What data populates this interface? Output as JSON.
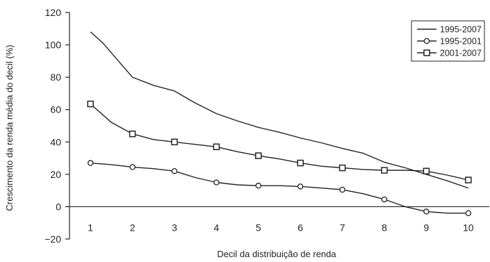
{
  "chart_data": {
    "type": "line",
    "title": "",
    "xlabel": "Decil da distribuição de renda",
    "ylabel": "Crescimento da renda média do decil (%)",
    "xlim": [
      0.5,
      10.5
    ],
    "ylim": [
      -20,
      120
    ],
    "x_ticks": [
      1,
      2,
      3,
      4,
      5,
      6,
      7,
      8,
      9,
      10
    ],
    "x_tick_labels": [
      "1",
      "2",
      "3",
      "4",
      "5",
      "6",
      "7",
      "8",
      "9",
      "10"
    ],
    "y_ticks": [
      -20,
      0,
      20,
      40,
      60,
      80,
      100,
      120
    ],
    "y_tick_labels": [
      "−20",
      "0",
      "20",
      "40",
      "60",
      "80",
      "100",
      "120"
    ],
    "grid": false,
    "legend_position": "top-right",
    "series": [
      {
        "name": "1995-2007",
        "marker": "none",
        "x": [
          1,
          1.3,
          1.6,
          1.8,
          2,
          2.5,
          3,
          3.5,
          4,
          4.5,
          5,
          5.5,
          6,
          6.5,
          7,
          7.5,
          8,
          8.5,
          9,
          9.5,
          10
        ],
        "values": [
          108,
          101,
          92,
          86,
          80,
          75,
          71.5,
          64,
          57.5,
          53,
          49,
          46,
          42.5,
          39.5,
          36,
          33,
          27.5,
          24,
          20,
          16,
          11.5
        ]
      },
      {
        "name": "1995-2001",
        "marker": "circle",
        "x": [
          1,
          1.5,
          2,
          2.5,
          3,
          3.5,
          4,
          4.5,
          5,
          5.5,
          6,
          6.5,
          7,
          7.5,
          8,
          8.5,
          9,
          9.5,
          10
        ],
        "values": [
          27,
          26,
          24.5,
          23.5,
          22,
          18,
          15,
          13.5,
          13,
          13,
          12.5,
          11.5,
          10.5,
          8,
          4.5,
          0,
          -3,
          -4,
          -4
        ]
      },
      {
        "name": "2001-2007",
        "marker": "square",
        "x": [
          1,
          1.5,
          2,
          2.5,
          3,
          3.5,
          4,
          4.5,
          5,
          5.5,
          6,
          6.5,
          7,
          7.5,
          8,
          8.5,
          9,
          9.5,
          10
        ],
        "values": [
          63.5,
          52,
          45,
          41.5,
          40,
          38.5,
          37,
          34,
          31.5,
          29.5,
          27,
          25,
          24,
          23,
          22.5,
          22.5,
          22,
          19.5,
          16.5
        ]
      }
    ],
    "marker_x": [
      1,
      2,
      3,
      4,
      5,
      6,
      7,
      8,
      9,
      10
    ]
  }
}
